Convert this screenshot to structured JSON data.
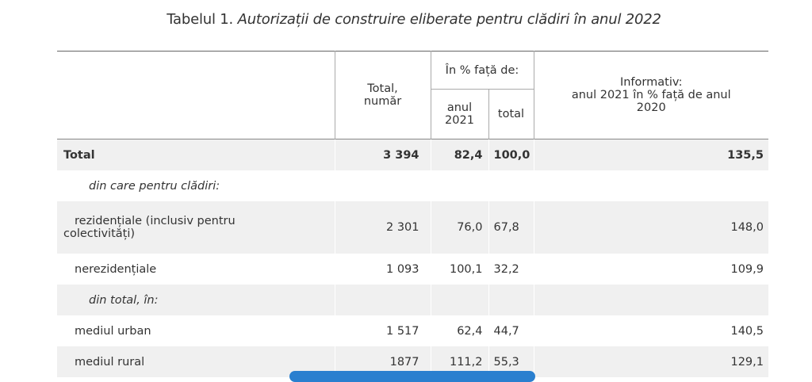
{
  "title": {
    "prefix": "Tabelul 1. ",
    "italic": "Autorizații de construire eliberate pentru clădiri în anul 2022"
  },
  "header": {
    "total_line1": "Total,",
    "total_line2": "număr",
    "percent_group": "În % față de:",
    "anul_line1": "anul",
    "anul_line2": "2021",
    "total_sub": "total",
    "info_line1": "Informativ:",
    "info_line2": "anul 2021 în % față de anul",
    "info_line3": "2020"
  },
  "rows": [
    {
      "label": "Total",
      "total": "3 394",
      "anul2021": "82,4",
      "pct_total": "100,0",
      "info": "135,5"
    },
    {
      "label": "din care pentru clădiri:",
      "total": "",
      "anul2021": "",
      "pct_total": "",
      "info": ""
    },
    {
      "label_line1": "rezidențiale (inclusiv pentru",
      "label_line2": "colectivități)",
      "total": "2 301",
      "anul2021": "76,0",
      "pct_total": "67,8",
      "info": "148,0"
    },
    {
      "label": "nerezidențiale",
      "total": "1 093",
      "anul2021": "100,1",
      "pct_total": "32,2",
      "info": "109,9"
    },
    {
      "label": "din total, în:",
      "total": "",
      "anul2021": "",
      "pct_total": "",
      "info": ""
    },
    {
      "label": "mediul urban",
      "total": "1 517",
      "anul2021": "62,4",
      "pct_total": "44,7",
      "info": "140,5"
    },
    {
      "label": "mediul rural",
      "total": "1877",
      "anul2021": "111,2",
      "pct_total": "55,3",
      "info": "129,1"
    }
  ]
}
